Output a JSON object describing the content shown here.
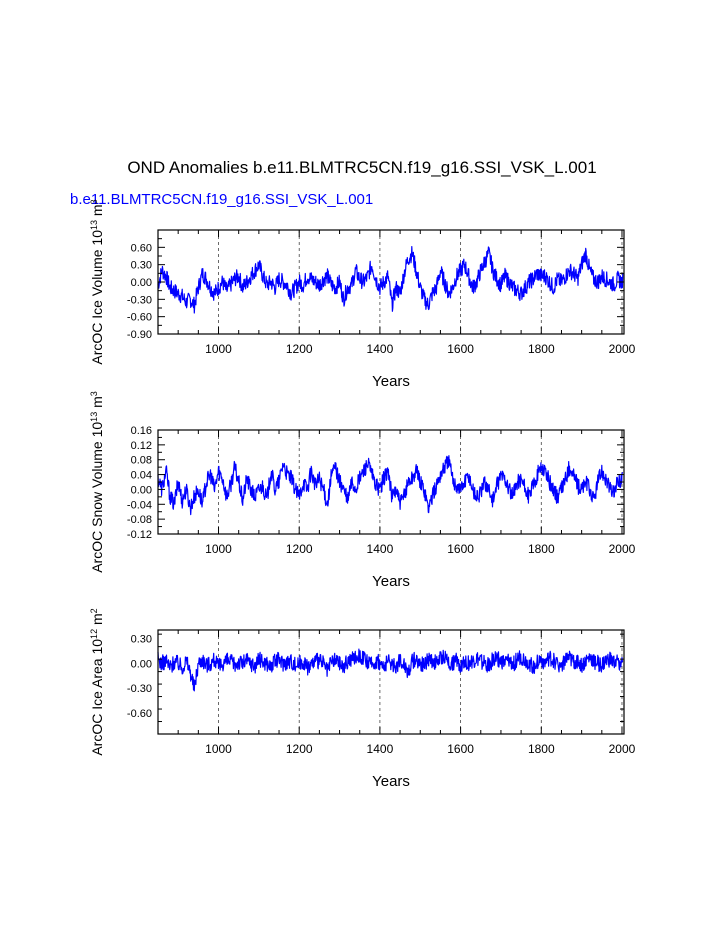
{
  "title": "OND Anomalies b.e11.BLMTRC5CN.f19_g16.SSI_VSK_L.001",
  "case_label": "b.e11.BLMTRC5CN.f19_g16.SSI_VSK_L.001",
  "colors": {
    "series": "#0000ff",
    "axis": "#000000",
    "grid": "#444444"
  },
  "chart_data": [
    {
      "type": "line",
      "ylabel": "ArcOC Ice Volume 10^13 m^3",
      "xlabel": "Years",
      "xlim": [
        850,
        2005
      ],
      "ylim": [
        -0.9,
        0.9
      ],
      "xticks": [
        "1000",
        "1200",
        "1400",
        "1600",
        "1800",
        "2000"
      ],
      "yticks": [
        "0.60",
        "0.30",
        "0.00",
        "-0.30",
        "-0.60",
        "-0.90"
      ],
      "grid": "dashed vertical at major x ticks",
      "series": [
        {
          "x_start": 850,
          "x_step": 10,
          "values": [
            -0.05,
            0.2,
            0.1,
            -0.1,
            -0.15,
            -0.2,
            -0.25,
            -0.35,
            -0.3,
            -0.4,
            -0.1,
            0.15,
            0.05,
            -0.1,
            -0.2,
            -0.1,
            0.0,
            -0.15,
            -0.05,
            0.05,
            0.1,
            -0.1,
            0.0,
            0.1,
            0.2,
            0.3,
            0.1,
            -0.05,
            0.0,
            -0.1,
            0.05,
            0.0,
            -0.05,
            -0.2,
            -0.1,
            0.0,
            -0.05,
            0.1,
            0.05,
            0.0,
            -0.05,
            0.05,
            0.1,
            -0.05,
            -0.1,
            0.0,
            -0.3,
            -0.1,
            -0.05,
            0.2,
            0.05,
            0.0,
            0.1,
            0.3,
            0.05,
            -0.1,
            0.0,
            0.1,
            -0.4,
            -0.1,
            -0.2,
            0.15,
            0.4,
            0.5,
            0.2,
            -0.1,
            -0.3,
            -0.4,
            -0.2,
            -0.1,
            0.2,
            0.0,
            -0.2,
            -0.1,
            0.1,
            0.2,
            0.3,
            0.1,
            -0.1,
            0.0,
            0.2,
            0.35,
            0.5,
            0.2,
            0.05,
            -0.05,
            0.1,
            0.0,
            -0.1,
            -0.15,
            -0.2,
            -0.1,
            0.0,
            0.05,
            0.15,
            0.1,
            0.1,
            0.0,
            -0.1,
            0.05,
            0.0,
            0.1,
            0.2,
            0.15,
            0.05,
            0.3,
            0.5,
            0.2,
            0.05,
            0.0,
            0.1,
            0.05,
            0.0,
            -0.05,
            0.05,
            0.0,
            0.1,
            -0.1
          ],
          "note": "approximate smoothed readings"
        }
      ]
    },
    {
      "type": "line",
      "ylabel": "ArcOC Snow Volume 10^13 m^3",
      "xlabel": "Years",
      "xlim": [
        850,
        2005
      ],
      "ylim": [
        -0.12,
        0.16
      ],
      "xticks": [
        "1000",
        "1200",
        "1400",
        "1600",
        "1800",
        "2000"
      ],
      "yticks": [
        "0.16",
        "0.12",
        "0.08",
        "0.04",
        "0.00",
        "-0.04",
        "-0.08",
        "-0.12"
      ],
      "grid": "dashed vertical at major x ticks",
      "series": [
        {
          "x_start": 850,
          "x_step": 10,
          "values": [
            0.03,
            0.0,
            0.05,
            -0.02,
            -0.04,
            0.02,
            -0.03,
            0.0,
            -0.05,
            -0.02,
            0.0,
            -0.04,
            0.02,
            0.04,
            0.0,
            0.05,
            0.03,
            -0.02,
            0.01,
            0.06,
            0.02,
            -0.03,
            0.03,
            0.0,
            -0.02,
            0.0,
            0.01,
            -0.03,
            0.05,
            0.0,
            0.02,
            0.07,
            0.04,
            0.03,
            0.0,
            -0.02,
            0.02,
            0.0,
            0.05,
            0.01,
            0.03,
            0.0,
            -0.04,
            0.04,
            0.06,
            0.02,
            0.0,
            -0.03,
            0.02,
            0.0,
            0.03,
            0.05,
            0.07,
            0.04,
            0.01,
            0.0,
            0.03,
            0.05,
            -0.02,
            0.0,
            -0.04,
            -0.02,
            0.02,
            0.03,
            0.05,
            0.02,
            0.0,
            -0.05,
            -0.02,
            0.01,
            0.04,
            0.06,
            0.08,
            0.03,
            0.01,
            0.0,
            0.02,
            0.04,
            0.0,
            -0.02,
            -0.01,
            0.02,
            0.0,
            -0.03,
            0.01,
            0.04,
            0.03,
            0.0,
            -0.02,
            0.02,
            0.03,
            0.0,
            -0.02,
            0.01,
            0.04,
            0.06,
            0.05,
            0.02,
            0.0,
            -0.02,
            0.0,
            0.03,
            0.06,
            0.04,
            0.01,
            0.0,
            0.02,
            0.0,
            -0.03,
            0.02,
            0.05,
            0.03,
            0.0,
            -0.01,
            0.02,
            0.03
          ],
          "note": "approximate smoothed readings"
        }
      ]
    },
    {
      "type": "line",
      "ylabel": "ArcOC Ice Area 10^12 m^2",
      "xlabel": "Years",
      "xlim": [
        850,
        2005
      ],
      "ylim": [
        -0.85,
        0.4
      ],
      "xticks": [
        "1000",
        "1200",
        "1400",
        "1600",
        "1800",
        "2000"
      ],
      "yticks": [
        "0.30",
        "0.00",
        "-0.30",
        "-0.60"
      ],
      "grid": "dashed vertical at major x ticks",
      "series": [
        {
          "x_start": 850,
          "x_step": 10,
          "values": [
            0.05,
            0.0,
            0.03,
            -0.05,
            0.02,
            0.0,
            -0.05,
            0.03,
            -0.1,
            -0.3,
            0.0,
            0.05,
            -0.02,
            0.0,
            0.05,
            -0.05,
            0.0,
            0.03,
            0.02,
            -0.02,
            0.02,
            0.0,
            0.04,
            0.0,
            -0.03,
            0.05,
            0.02,
            0.0,
            -0.04,
            0.02,
            0.05,
            0.0,
            0.02,
            0.03,
            -0.02,
            0.0,
            0.03,
            -0.05,
            0.0,
            0.02,
            0.03,
            0.0,
            -0.1,
            0.02,
            0.04,
            0.0,
            -0.05,
            0.03,
            0.05,
            0.08,
            0.1,
            0.05,
            0.0,
            -0.02,
            0.03,
            0.0,
            -0.05,
            0.02,
            0.0,
            -0.04,
            0.03,
            0.0,
            -0.1,
            0.02,
            0.05,
            0.0,
            -0.02,
            0.04,
            0.03,
            0.0,
            0.05,
            0.08,
            0.02,
            0.0,
            0.03,
            -0.02,
            0.04,
            0.0,
            0.02,
            0.05,
            0.03,
            0.0,
            -0.02,
            0.04,
            0.06,
            0.02,
            0.0,
            0.03,
            -0.02,
            0.05,
            0.07,
            0.03,
            0.0,
            -0.05,
            0.02,
            0.04,
            0.0,
            0.06,
            0.03,
            0.0,
            -0.02,
            0.04,
            0.05,
            0.0,
            0.03,
            -0.04,
            0.02,
            0.06,
            0.03,
            0.0,
            -0.03,
            0.02,
            0.04,
            0.0,
            0.02,
            0.0
          ],
          "note": "approximate smoothed readings"
        }
      ]
    }
  ]
}
